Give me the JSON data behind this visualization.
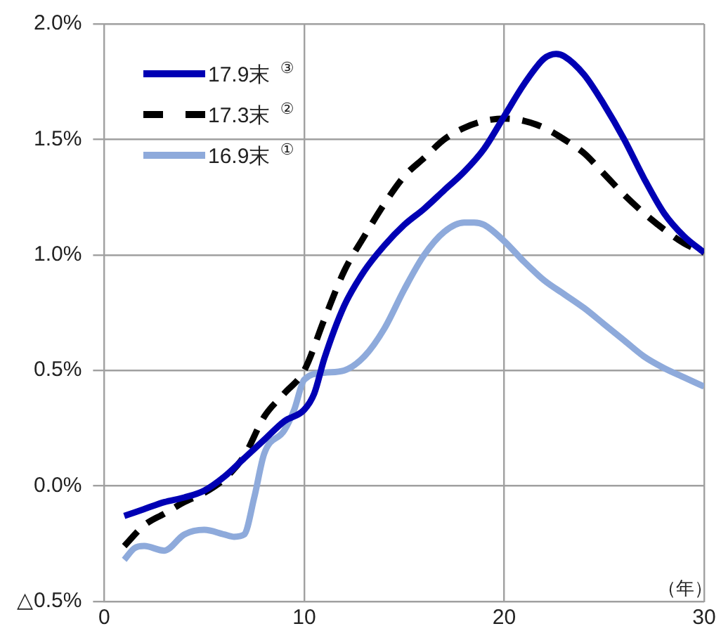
{
  "chart_data": {
    "type": "line",
    "xlabel": "（年）",
    "xlim": [
      0,
      30
    ],
    "xticks": [
      0,
      10,
      20,
      30
    ],
    "ylim": [
      -0.5,
      2.0
    ],
    "yticks": [
      {
        "value": -0.5,
        "label": "△0.5%"
      },
      {
        "value": 0,
        "label": "0.0%"
      },
      {
        "value": 0.5,
        "label": "0.5%"
      },
      {
        "value": 1.0,
        "label": "1.0%"
      },
      {
        "value": 1.5,
        "label": "1.5%"
      },
      {
        "value": 2.0,
        "label": "2.0%"
      }
    ],
    "grid": true,
    "legend": "top left",
    "marker": "none",
    "series": [
      {
        "name": "17.9末 $^{③}$",
        "color": "#0000b4",
        "line_style": "solid",
        "x": [
          1,
          2,
          3,
          4,
          5,
          6,
          7,
          8,
          9,
          10,
          10.5,
          11,
          12,
          13,
          14,
          15,
          16,
          17,
          18,
          19,
          20,
          21,
          22,
          22.6,
          23,
          24,
          25,
          26,
          27,
          28,
          29,
          30
        ],
        "values": [
          -0.13,
          -0.1,
          -0.07,
          -0.05,
          -0.02,
          0.04,
          0.12,
          0.2,
          0.28,
          0.33,
          0.4,
          0.55,
          0.78,
          0.93,
          1.04,
          1.13,
          1.2,
          1.28,
          1.36,
          1.46,
          1.6,
          1.74,
          1.85,
          1.87,
          1.86,
          1.78,
          1.65,
          1.5,
          1.33,
          1.18,
          1.08,
          1.01
        ]
      },
      {
        "name": "17.3末 $^{②}$",
        "color": "#000000",
        "line_style": "dashed",
        "x": [
          1,
          2,
          3,
          4,
          5,
          6,
          7,
          8,
          9,
          10,
          11,
          12,
          13,
          14,
          15,
          16,
          17,
          18,
          19,
          20,
          21,
          22,
          23,
          24,
          25,
          26,
          27,
          28,
          29,
          30
        ],
        "values": [
          -0.26,
          -0.17,
          -0.12,
          -0.07,
          -0.03,
          0.03,
          0.13,
          0.3,
          0.4,
          0.5,
          0.72,
          0.93,
          1.08,
          1.22,
          1.34,
          1.42,
          1.5,
          1.55,
          1.58,
          1.59,
          1.58,
          1.55,
          1.5,
          1.44,
          1.35,
          1.26,
          1.18,
          1.11,
          1.05,
          1.01
        ]
      },
      {
        "name": "16.9末 $^{①}$",
        "color": "#8eaadb",
        "line_style": "solid",
        "x": [
          1,
          1.5,
          2,
          3,
          4,
          5,
          6,
          6.5,
          7,
          7.5,
          8,
          9,
          9.5,
          10,
          11,
          12,
          13,
          14,
          15,
          16,
          17,
          18,
          18.5,
          19,
          20,
          21,
          22,
          23,
          24,
          25,
          26,
          27,
          28,
          29,
          30
        ],
        "values": [
          -0.32,
          -0.27,
          -0.26,
          -0.28,
          -0.21,
          -0.19,
          -0.21,
          -0.22,
          -0.21,
          -0.05,
          0.14,
          0.24,
          0.33,
          0.46,
          0.49,
          0.5,
          0.56,
          0.68,
          0.85,
          1.0,
          1.1,
          1.14,
          1.14,
          1.13,
          1.06,
          0.97,
          0.89,
          0.83,
          0.77,
          0.7,
          0.63,
          0.56,
          0.51,
          0.47,
          0.43
        ]
      }
    ]
  }
}
